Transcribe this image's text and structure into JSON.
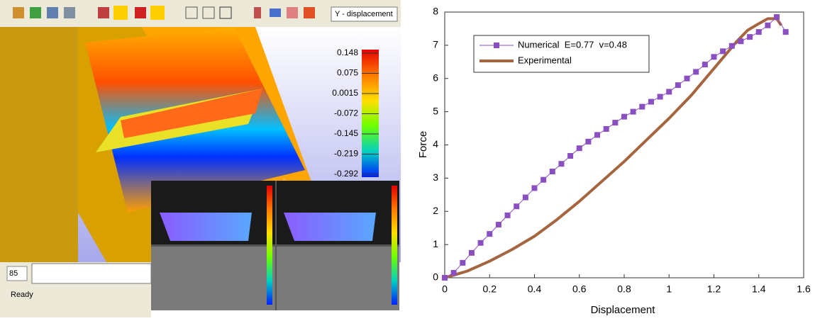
{
  "ui": {
    "result_field": "Y - displacement",
    "colorbar_labels": [
      "0.148",
      "0.075",
      "0.0015",
      "-0.072",
      "-0.145",
      "-0.219",
      "-0.292"
    ],
    "frame": "85",
    "status": "Ready"
  },
  "chart_data": {
    "type": "line",
    "xlabel": "Displacement",
    "ylabel": "Force",
    "xlim": [
      0,
      1.6
    ],
    "xticks": [
      0,
      0.2,
      0.4,
      0.6,
      0.8,
      1,
      1.2,
      1.4,
      1.6
    ],
    "ylim": [
      0,
      8
    ],
    "yticks": [
      0,
      1,
      2,
      3,
      4,
      5,
      6,
      7,
      8
    ],
    "grid": false,
    "legend": "upper left",
    "series": [
      {
        "name": "Numerical  E=0.77  v=0.48",
        "color": "#8a4fc0",
        "marker": "square",
        "x": [
          0,
          0.04,
          0.08,
          0.12,
          0.16,
          0.2,
          0.24,
          0.28,
          0.32,
          0.36,
          0.4,
          0.44,
          0.48,
          0.52,
          0.56,
          0.6,
          0.64,
          0.68,
          0.72,
          0.76,
          0.8,
          0.84,
          0.88,
          0.92,
          0.96,
          1,
          1.04,
          1.08,
          1.12,
          1.16,
          1.2,
          1.24,
          1.28,
          1.32,
          1.36,
          1.4,
          1.44,
          1.48,
          1.52
        ],
        "values": [
          0,
          0.15,
          0.45,
          0.75,
          1.05,
          1.32,
          1.6,
          1.88,
          2.15,
          2.42,
          2.7,
          2.95,
          3.2,
          3.43,
          3.67,
          3.9,
          4.1,
          4.3,
          4.48,
          4.67,
          4.85,
          5.0,
          5.15,
          5.3,
          5.45,
          5.6,
          5.8,
          6.0,
          6.2,
          6.42,
          6.65,
          6.82,
          6.98,
          7.12,
          7.25,
          7.4,
          7.6,
          7.85,
          7.4
        ]
      },
      {
        "name": "Experimental",
        "color": "#a5653f",
        "x": [
          0,
          0.1,
          0.2,
          0.3,
          0.4,
          0.5,
          0.6,
          0.7,
          0.8,
          0.9,
          1,
          1.1,
          1.2,
          1.3,
          1.35,
          1.4,
          1.44,
          1.48,
          1.5
        ],
        "values": [
          0,
          0.2,
          0.5,
          0.85,
          1.25,
          1.75,
          2.3,
          2.9,
          3.5,
          4.15,
          4.8,
          5.5,
          6.3,
          7.1,
          7.45,
          7.65,
          7.8,
          7.8,
          7.6
        ]
      }
    ]
  }
}
